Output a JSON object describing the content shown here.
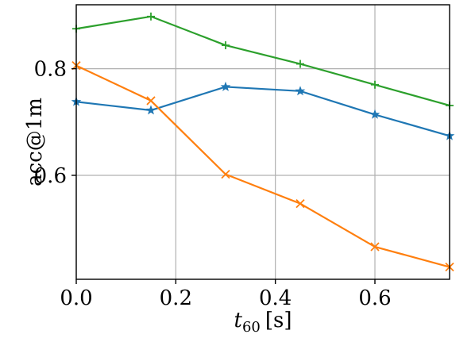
{
  "chart_data": {
    "type": "line",
    "title": "",
    "xlabel_main": "t",
    "xlabel_sub": "60",
    "xlabel_unit": "[s]",
    "ylabel": "acc@1m",
    "xlim": [
      0.0,
      0.75
    ],
    "ylim": [
      0.405,
      0.92
    ],
    "xticks": [
      0.0,
      0.2,
      0.4,
      0.6
    ],
    "xtick_labels": [
      "0.0",
      "0.2",
      "0.4",
      "0.6"
    ],
    "yticks": [
      0.6,
      0.8
    ],
    "ytick_labels": [
      "0.6",
      "0.8"
    ],
    "grid": true,
    "x": [
      0.0,
      0.15,
      0.3,
      0.45,
      0.6,
      0.75
    ],
    "series": [
      {
        "values": [
          0.738,
          0.722,
          0.766,
          0.758,
          0.714,
          0.674
        ],
        "color": "#1f77b4",
        "marker": "star"
      },
      {
        "values": [
          0.806,
          0.74,
          0.602,
          0.547,
          0.466,
          0.428
        ],
        "color": "#ff7f0e",
        "marker": "x"
      },
      {
        "values": [
          0.875,
          0.898,
          0.844,
          0.809,
          0.77,
          0.731
        ],
        "color": "#2ca02c",
        "marker": "plus"
      }
    ]
  }
}
